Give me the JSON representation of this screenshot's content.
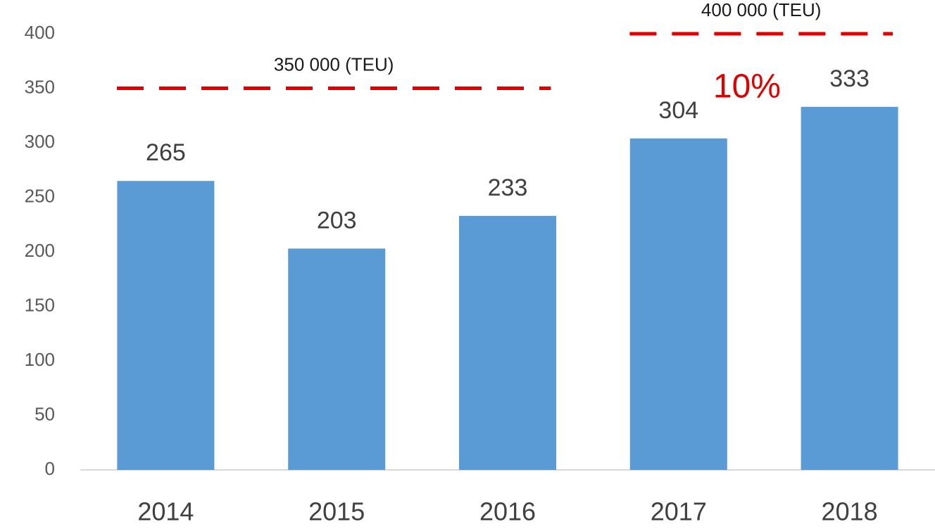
{
  "chart_data": {
    "type": "bar",
    "categories": [
      "2014",
      "2015",
      "2016",
      "2017",
      "2018"
    ],
    "values": [
      265,
      203,
      233,
      304,
      333
    ],
    "color": "#5b9bd5",
    "ylim": [
      0,
      400
    ],
    "yticks": [
      0,
      50,
      100,
      150,
      200,
      250,
      300,
      350,
      400
    ],
    "grid": false,
    "reference_lines": [
      {
        "value": 350,
        "label": "350 000 (TEU)",
        "color": "#e00000"
      },
      {
        "value": 400,
        "label": "400 000 (TEU)",
        "color": "#e00000"
      }
    ],
    "annotation": {
      "text": "10%",
      "color": "#e00000"
    }
  }
}
